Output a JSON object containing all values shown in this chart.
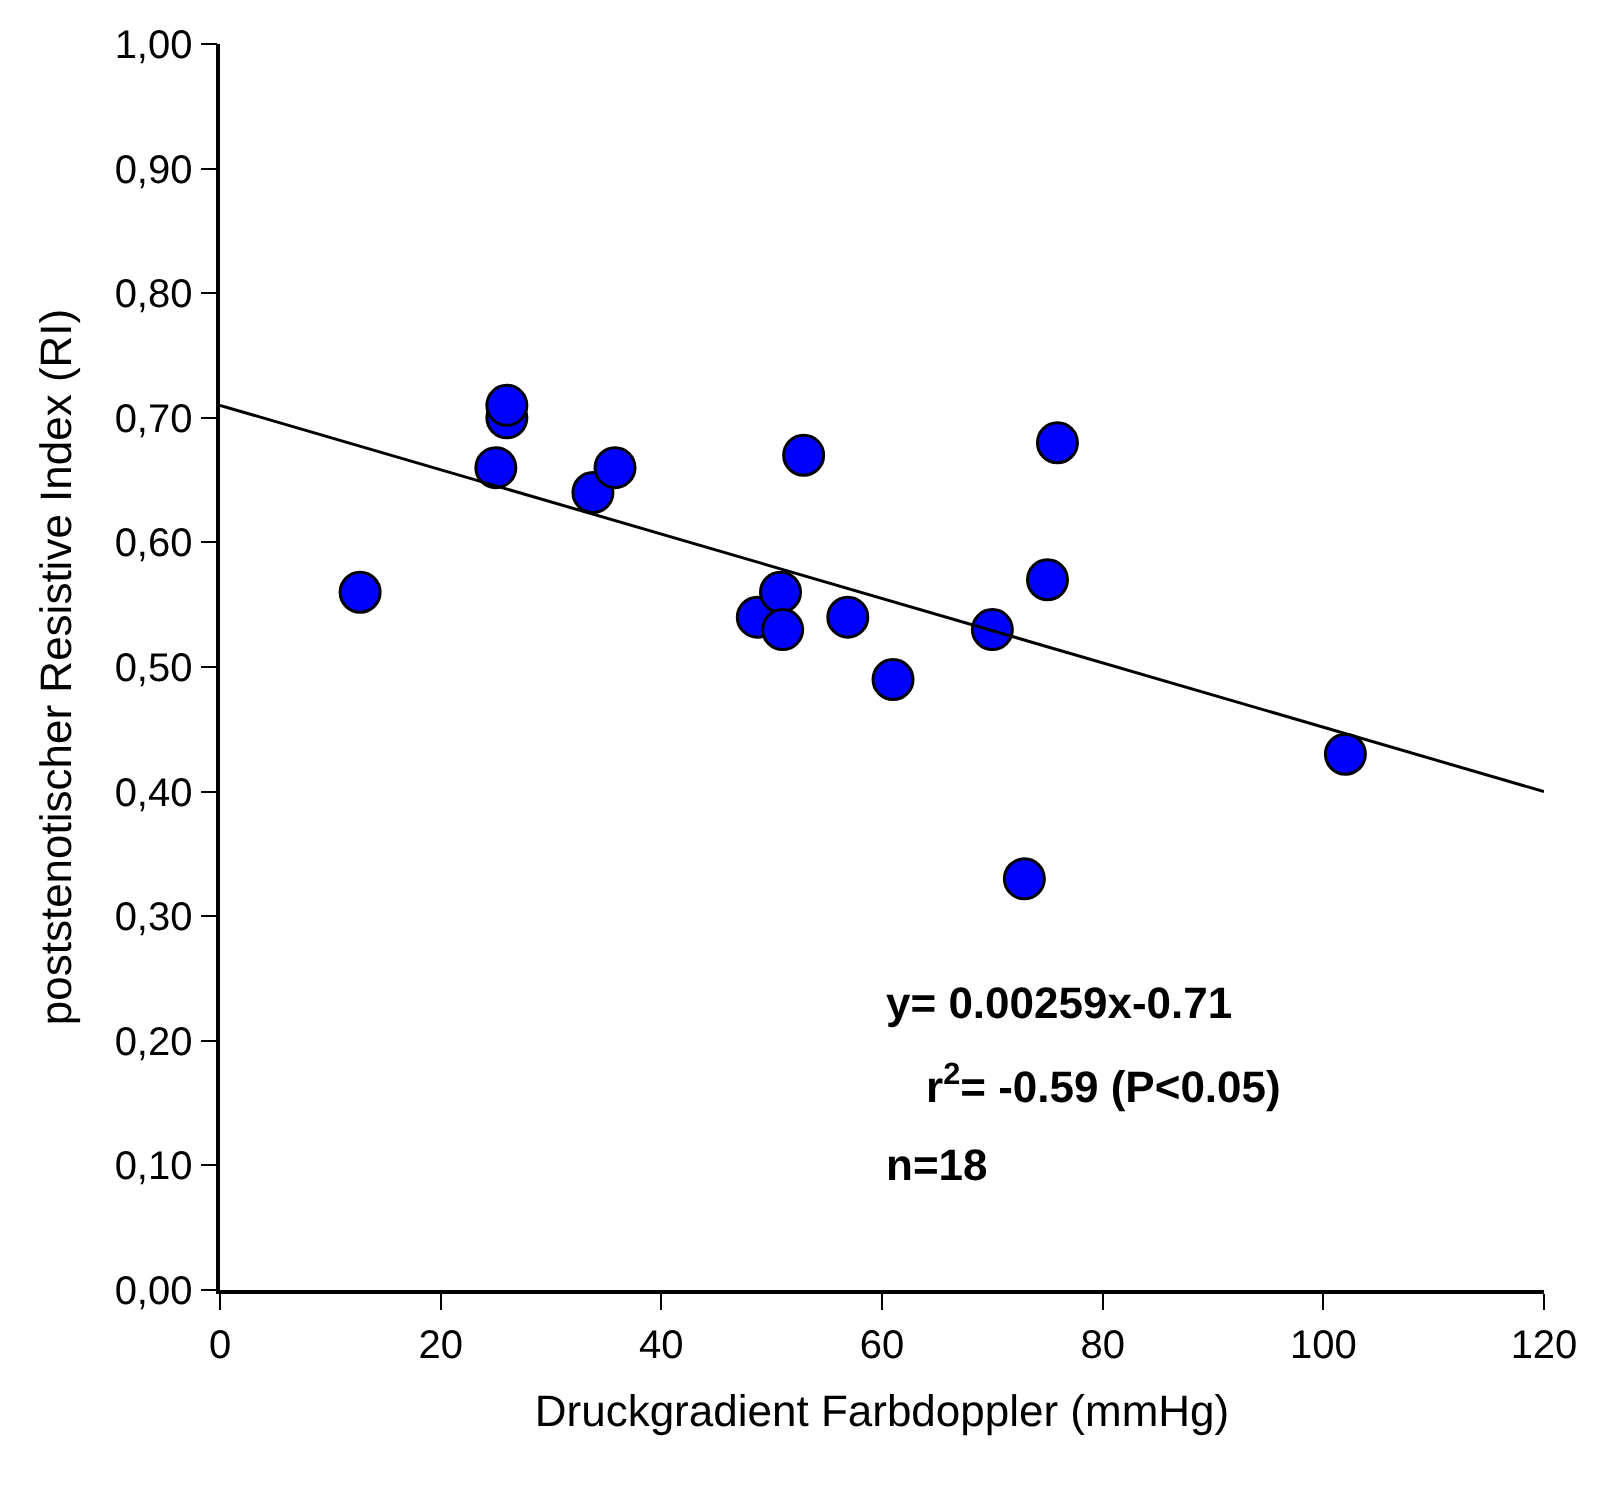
{
  "chart_data": {
    "type": "scatter",
    "xlabel": "Druckgradient Farbdoppler (mmHg)",
    "ylabel": "poststenotischer Resistive Index (RI)",
    "series": [
      {
        "type": "scatter",
        "color": "#0000ff",
        "marker": "circle",
        "x": [
          12.7,
          25,
          26,
          26,
          33.8,
          35.8,
          52.9,
          48.7,
          50.8,
          51,
          56.9,
          61,
          70,
          75,
          75.9,
          72.9,
          102
        ],
        "values": [
          0.56,
          0.66,
          0.7,
          0.71,
          0.64,
          0.66,
          0.67,
          0.54,
          0.56,
          0.53,
          0.54,
          0.49,
          0.53,
          0.57,
          0.68,
          0.33,
          0.43
        ]
      },
      {
        "type": "line",
        "color": "#000000",
        "marker": "none",
        "line_style": "solid",
        "x": [
          0,
          120
        ],
        "values": [
          0.71,
          0.4
        ]
      }
    ],
    "xlim": [
      0,
      120
    ],
    "xticks": [
      0,
      20,
      40,
      60,
      80,
      100,
      120
    ],
    "ylim": [
      0,
      1
    ],
    "yticks": [
      {
        "value": 0,
        "label": "0,00"
      },
      {
        "value": 0.1,
        "label": "0,10"
      },
      {
        "value": 0.2,
        "label": "0,20"
      },
      {
        "value": 0.3,
        "label": "0,30"
      },
      {
        "value": 0.4,
        "label": "0,40"
      },
      {
        "value": 0.5,
        "label": "0,50"
      },
      {
        "value": 0.6,
        "label": "0,60"
      },
      {
        "value": 0.7,
        "label": "0,70"
      },
      {
        "value": 0.8,
        "label": "0,80"
      },
      {
        "value": 0.9,
        "label": "0,90"
      },
      {
        "value": 1,
        "label": "1,00"
      }
    ],
    "annotations": [
      "y= 0.00259x-0.71",
      "r$^{2}$= -0.59 (P<0.05)",
      "n=18"
    ]
  }
}
